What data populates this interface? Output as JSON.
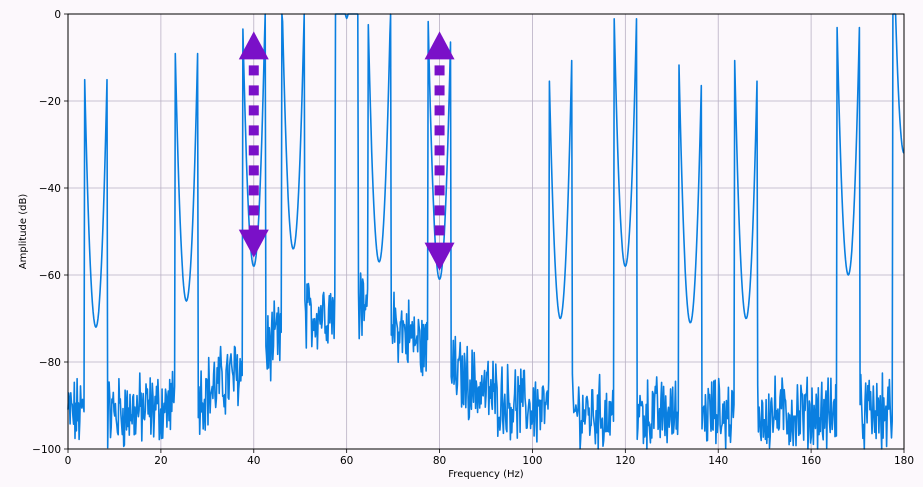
{
  "chart_data": {
    "type": "line",
    "title": "",
    "xlabel": "Frequency (Hz)",
    "ylabel": "Amplitude (dB)",
    "xlim": [
      0,
      180
    ],
    "ylim": [
      -100,
      0
    ],
    "xticks": [
      0,
      20,
      40,
      60,
      80,
      100,
      120,
      140,
      160,
      180
    ],
    "yticks": [
      0,
      -20,
      -40,
      -60,
      -80,
      -100
    ],
    "grid": true,
    "colors": {
      "line": "#0a7fe0",
      "grid": "#b9b0c4",
      "arrow": "#7a10c8",
      "background": "#fcf8fc"
    },
    "peaks": [
      {
        "x": 6,
        "y": -72
      },
      {
        "x": 25.5,
        "y": -66
      },
      {
        "x": 40,
        "y": -58
      },
      {
        "x": 48.5,
        "y": -54
      },
      {
        "x": 60,
        "y": -1
      },
      {
        "x": 67,
        "y": -57
      },
      {
        "x": 80,
        "y": -61
      },
      {
        "x": 106,
        "y": -70
      },
      {
        "x": 120,
        "y": -58
      },
      {
        "x": 134,
        "y": -71
      },
      {
        "x": 146,
        "y": -70
      },
      {
        "x": 168,
        "y": -60
      },
      {
        "x": 180,
        "y": -32
      }
    ],
    "annotations": [
      {
        "type": "double-arrow",
        "x": 40,
        "y_top": -4,
        "y_bottom": -56,
        "color": "#7a10c8"
      },
      {
        "type": "double-arrow",
        "x": 80,
        "y_top": -4,
        "y_bottom": -59,
        "color": "#7a10c8"
      }
    ]
  }
}
